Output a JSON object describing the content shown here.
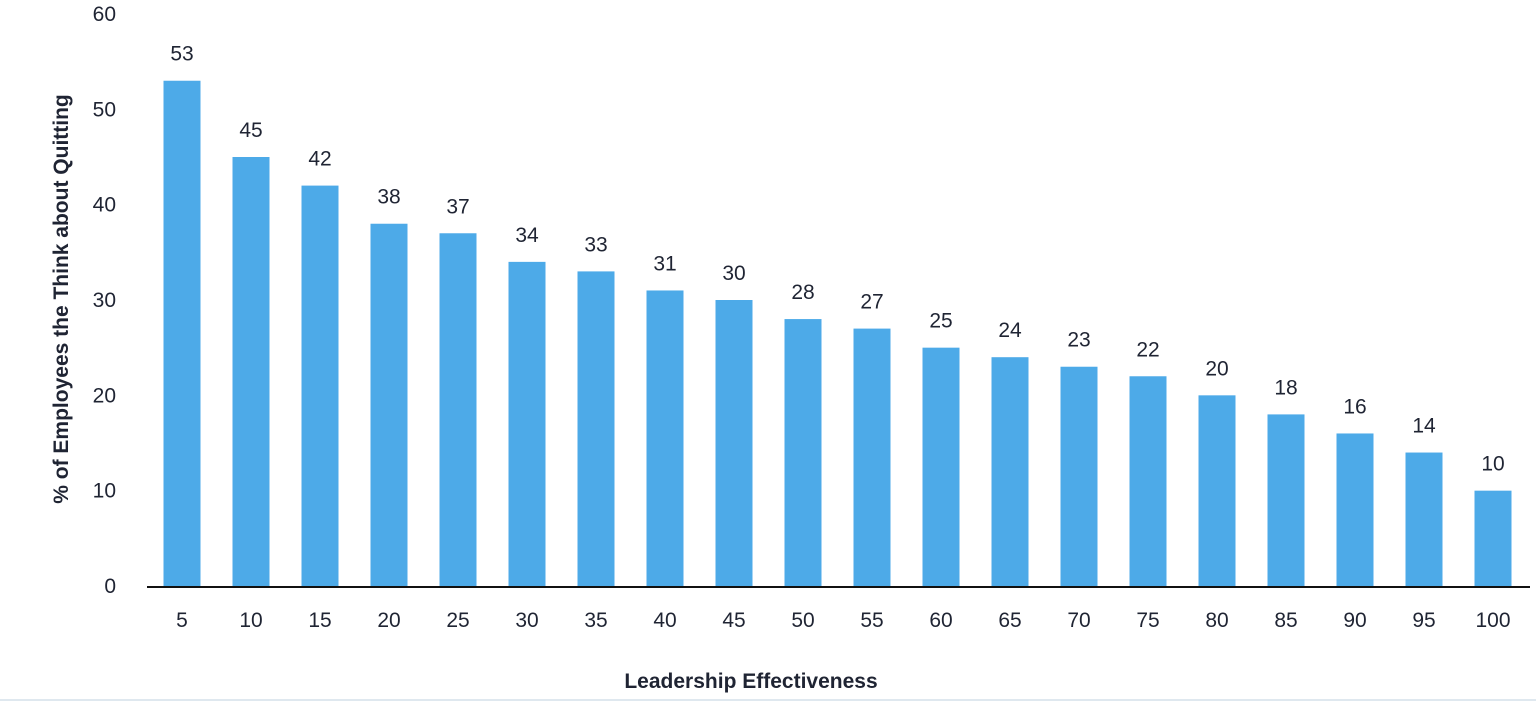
{
  "chart_data": {
    "type": "bar",
    "title": "",
    "xlabel": "Leadership Effectiveness",
    "ylabel": "% of Employees the Think about Quitting",
    "categories": [
      "5",
      "10",
      "15",
      "20",
      "25",
      "30",
      "35",
      "40",
      "45",
      "50",
      "55",
      "60",
      "65",
      "70",
      "75",
      "80",
      "85",
      "90",
      "95",
      "100"
    ],
    "values": [
      53,
      45,
      42,
      38,
      37,
      34,
      33,
      31,
      30,
      28,
      27,
      25,
      24,
      23,
      22,
      20,
      18,
      16,
      14,
      10
    ],
    "ylim": [
      0,
      60
    ],
    "yticks": [
      0,
      10,
      20,
      30,
      40,
      50,
      60
    ],
    "grid": false,
    "legend": "none",
    "bar_color": "#4daae8",
    "text_color": "#1f2433",
    "axis_color": "#111111"
  }
}
